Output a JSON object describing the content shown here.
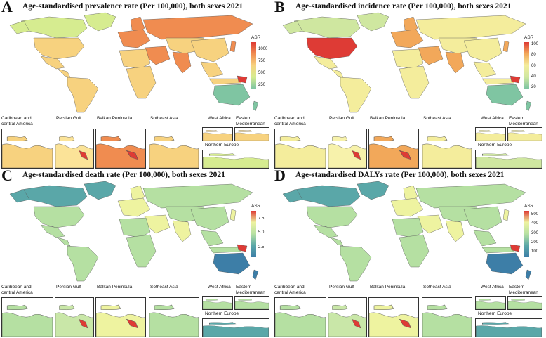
{
  "panels": [
    {
      "letter": "A",
      "title": "Age-standardised prevalence rate (Per 100,000), both sexes 2021",
      "legend_title": "ASR",
      "legend_ticks": [
        "1000",
        "750",
        "500",
        "250"
      ],
      "legend_values": [
        1000,
        750,
        500,
        250
      ],
      "legend_range": [
        180,
        1150
      ],
      "colors": {
        "base": "#f7d27f",
        "cool": "#d6ec90",
        "warm": "#f08c50",
        "hot": "#de3b35",
        "cold": "#7fc5a2",
        "ocean_land": "#fbe398"
      }
    },
    {
      "letter": "B",
      "title": "Age-standardised incidence rate (Per 100,000), both sexes 2021",
      "legend_title": "ASR",
      "legend_ticks": [
        "100",
        "80",
        "60",
        "40",
        "20"
      ],
      "legend_values": [
        100,
        80,
        60,
        40,
        20
      ],
      "legend_range": [
        18,
        104
      ],
      "colors": {
        "base": "#f4ed9c",
        "cool": "#cfe7a0",
        "warm": "#f2a85a",
        "hot": "#de3b35",
        "cold": "#7fc5a2",
        "ocean_land": "#f7f2ab"
      }
    },
    {
      "letter": "C",
      "title": "Age-standardised death rate (Per 100,000), both sexes 2021",
      "legend_title": "ASR",
      "legend_ticks": [
        "7.5",
        "5.0",
        "2.5"
      ],
      "legend_values": [
        7.5,
        5.0,
        2.5
      ],
      "legend_range": [
        0.8,
        8.8
      ],
      "colors": {
        "base": "#b5e0a2",
        "cool": "#5aa7a8",
        "warm": "#eef3a0",
        "hot": "#de3b35",
        "cold": "#3d7ea7",
        "ocean_land": "#c9e7a8"
      }
    },
    {
      "letter": "D",
      "title": "Age-standardised DALYs rate (Per 100,000), both sexes 2021",
      "legend_title": "ASR",
      "legend_ticks": [
        "500",
        "400",
        "300",
        "200",
        "100"
      ],
      "legend_values": [
        500,
        400,
        300,
        200,
        100
      ],
      "legend_range": [
        40,
        540
      ],
      "colors": {
        "base": "#b5e0a2",
        "cool": "#5aa7a8",
        "warm": "#eef3a0",
        "hot": "#de3b35",
        "cold": "#3d7ea7",
        "ocean_land": "#c9e7a8"
      }
    }
  ],
  "inset_labels": {
    "caribbean": "Caribbean and central America",
    "persian": "Persian Gulf",
    "balkan": "Balkan Peninsula",
    "seasia": "Sotheast Asia",
    "westafrica": "West Africa",
    "eastmed": "Eastern Mediterranean",
    "northeurope": "Northern Europe"
  }
}
